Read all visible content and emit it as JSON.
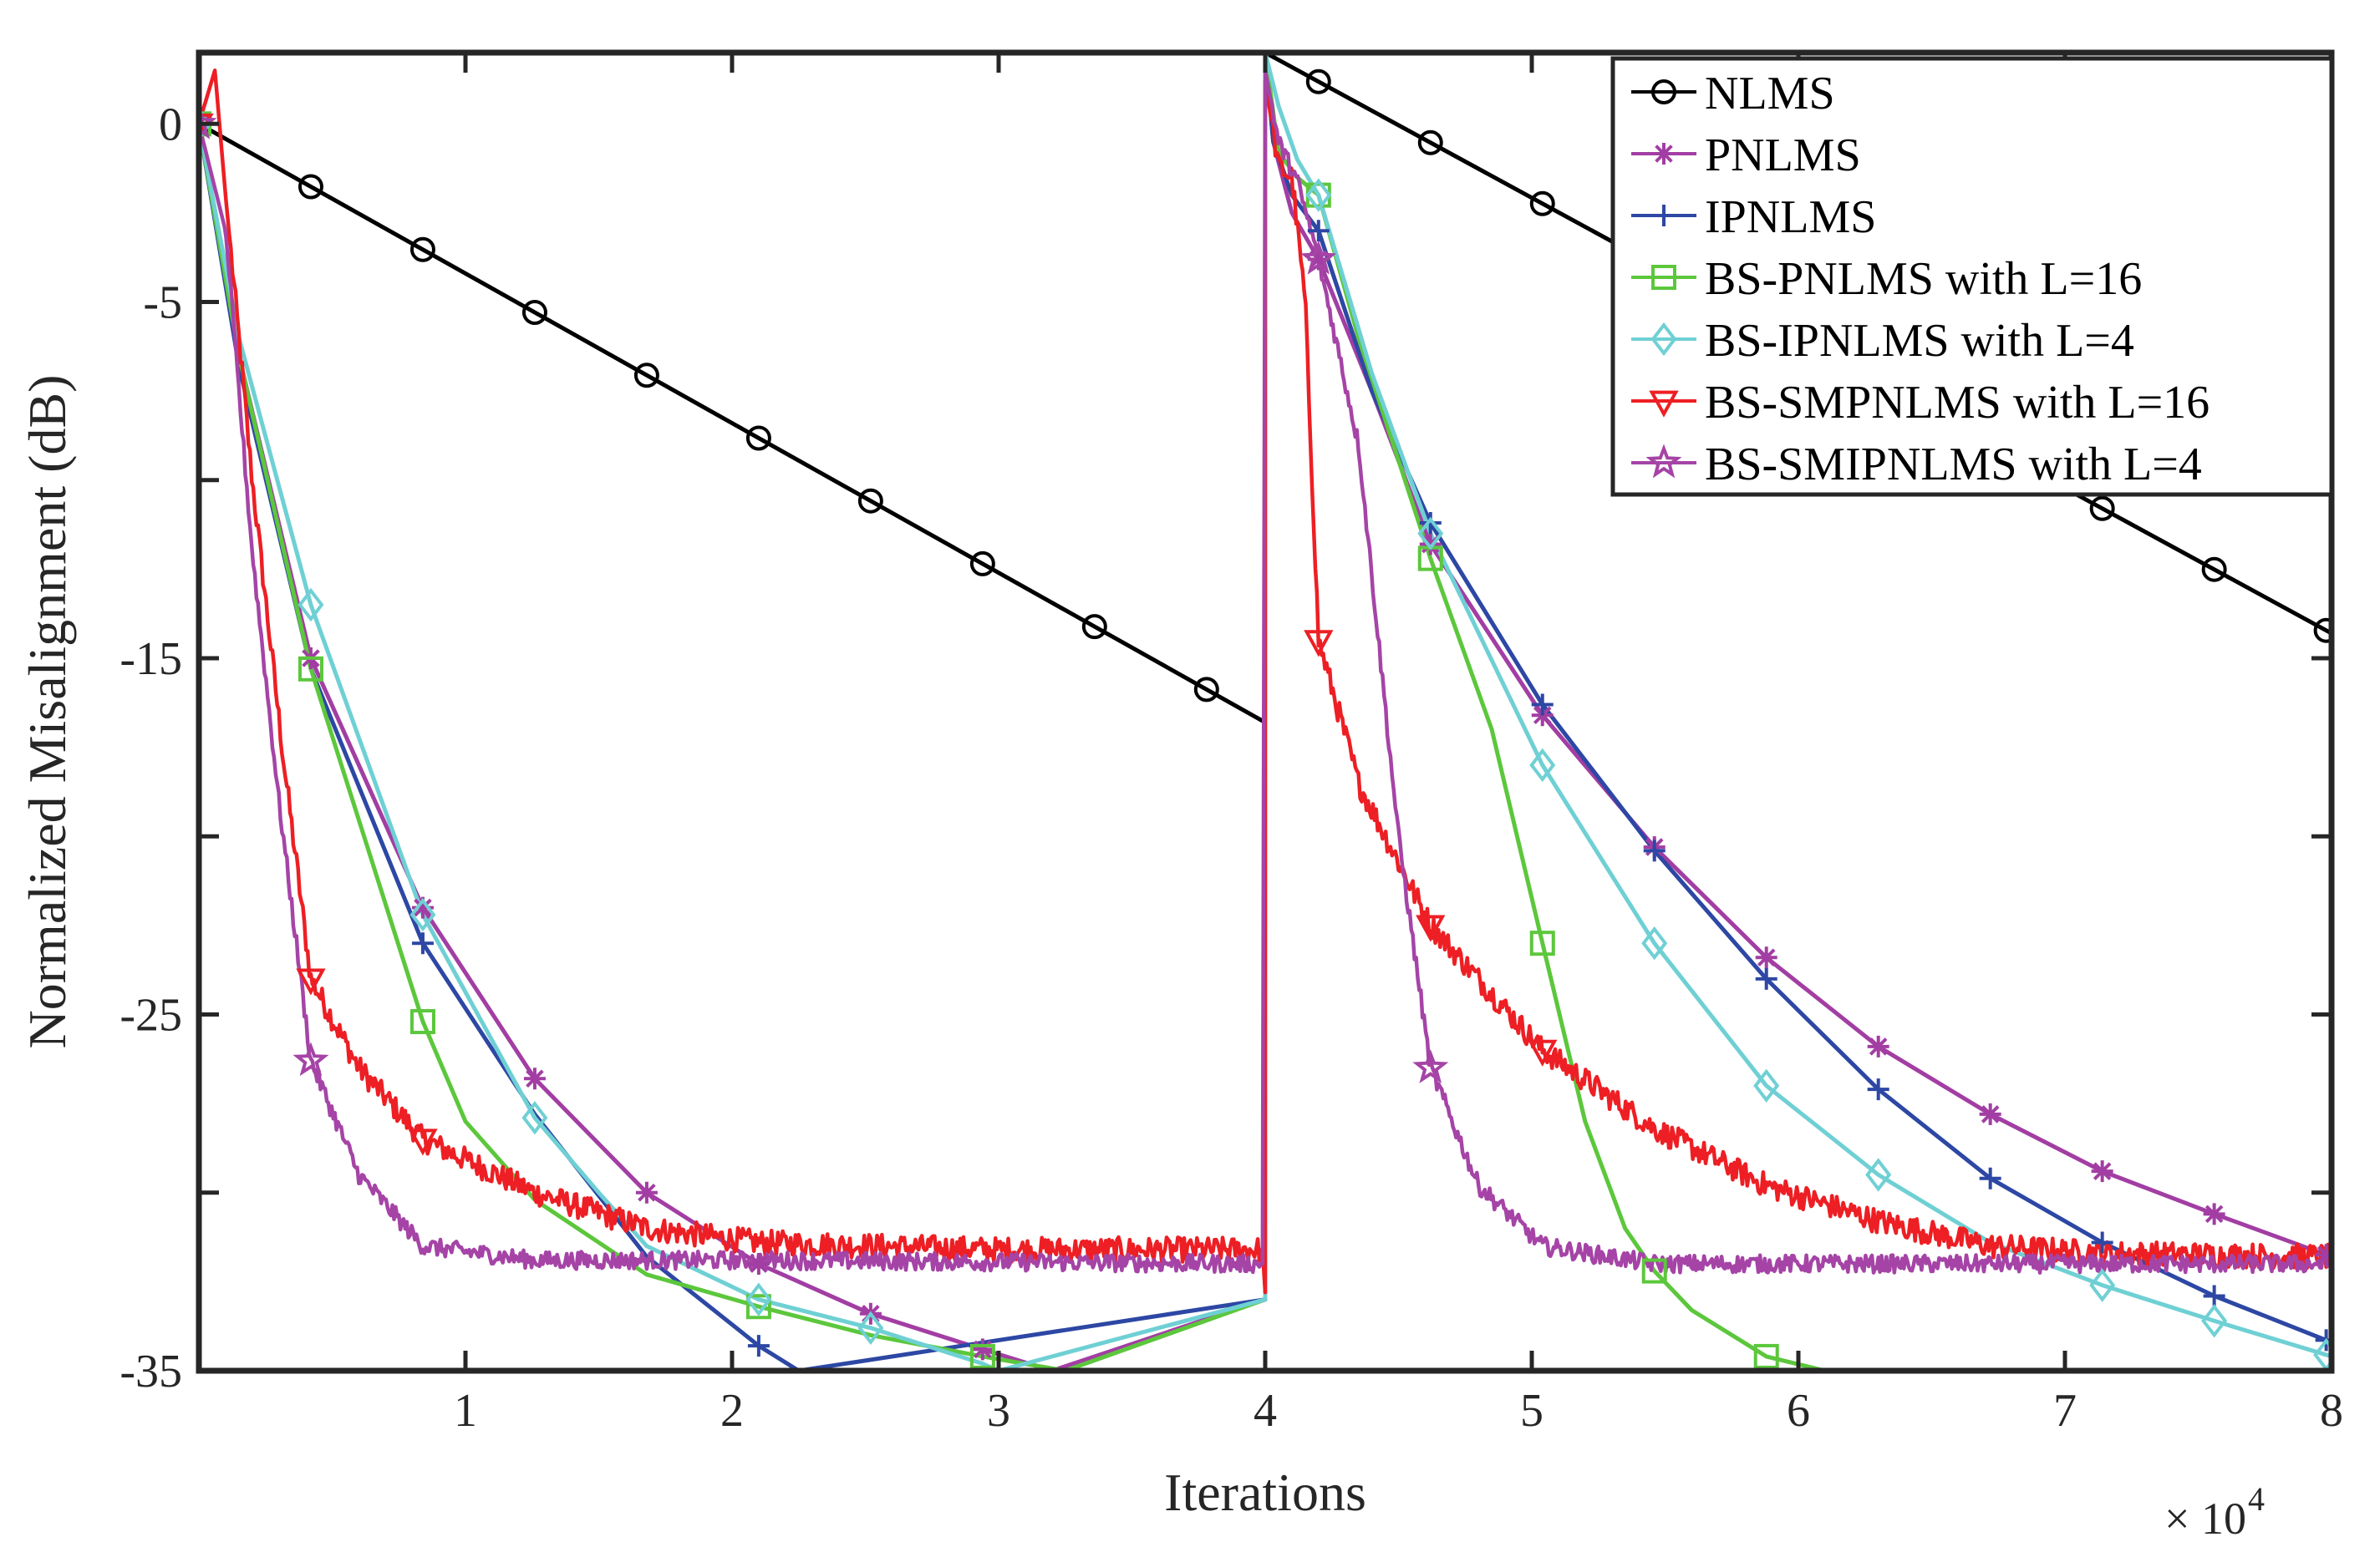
{
  "chart_data": {
    "type": "line",
    "title": "",
    "xlabel": "Iterations",
    "ylabel": "Normalized Misalignment (dB)",
    "x_exponent_label": "× 10",
    "x_exponent_power": "4",
    "xlim": [
      0,
      8
    ],
    "ylim": [
      -35,
      2
    ],
    "x_ticks": [
      1,
      2,
      3,
      4,
      5,
      6,
      7,
      8
    ],
    "x_tick_labels": [
      "1",
      "2",
      "3",
      "4",
      "5",
      "6",
      "7",
      "8"
    ],
    "y_ticks": [
      0,
      -5,
      -15,
      -25,
      -35
    ],
    "y_tick_labels": [
      "0",
      "-5",
      "-15",
      "-25",
      "-35"
    ],
    "y_tick_marks": [
      0,
      -5,
      -10,
      -15,
      -20,
      -25,
      -30,
      -35
    ],
    "grid": false,
    "legend_position": "top-right",
    "series": [
      {
        "name": "NLMS",
        "color": "#000000",
        "marker": "circle",
        "points": [
          [
            0,
            0
          ],
          [
            4,
            -16.8
          ],
          [
            4.0001,
            2
          ],
          [
            8,
            -14.3
          ]
        ],
        "marker_x": [
          0,
          0.42,
          0.84,
          1.26,
          1.68,
          2.1,
          2.52,
          2.94,
          3.36,
          3.78,
          4.2,
          4.62,
          5.04,
          5.46,
          5.88,
          6.3,
          6.72,
          7.14,
          7.56,
          7.98
        ]
      },
      {
        "name": "PNLMS",
        "color": "#a23ea3",
        "marker": "asterisk",
        "points": [
          [
            0,
            0
          ],
          [
            0.15,
            -6.5
          ],
          [
            0.42,
            -15.0
          ],
          [
            0.84,
            -22.0
          ],
          [
            1.26,
            -26.8
          ],
          [
            1.68,
            -30.0
          ],
          [
            2.1,
            -32.0
          ],
          [
            2.52,
            -33.4
          ],
          [
            2.94,
            -34.4
          ],
          [
            3.2,
            -35
          ],
          [
            4,
            -33
          ],
          [
            4.0001,
            2
          ],
          [
            4.03,
            -0.5
          ],
          [
            4.1,
            -2.5
          ],
          [
            4.2,
            -3.8
          ],
          [
            4.4,
            -7.5
          ],
          [
            4.62,
            -11.8
          ],
          [
            5.04,
            -16.6
          ],
          [
            5.46,
            -20.3
          ],
          [
            5.88,
            -23.4
          ],
          [
            6.3,
            -25.9
          ],
          [
            6.72,
            -27.8
          ],
          [
            7.14,
            -29.4
          ],
          [
            7.56,
            -30.6
          ],
          [
            8,
            -31.8
          ]
        ],
        "marker_x": [
          0,
          0.42,
          0.84,
          1.26,
          1.68,
          2.1,
          2.52,
          2.94,
          4.2,
          4.62,
          5.04,
          5.46,
          5.88,
          6.3,
          6.72,
          7.14,
          7.56,
          7.98
        ]
      },
      {
        "name": "IPNLMS",
        "color": "#2d47a4",
        "marker": "plus",
        "points": [
          [
            0,
            0
          ],
          [
            0.15,
            -6.8
          ],
          [
            0.42,
            -15.3
          ],
          [
            0.84,
            -23.0
          ],
          [
            1.26,
            -27.8
          ],
          [
            1.68,
            -31.8
          ],
          [
            2.1,
            -34.3
          ],
          [
            2.25,
            -35
          ],
          [
            4,
            -33
          ],
          [
            4.0001,
            2
          ],
          [
            4.03,
            -0.5
          ],
          [
            4.1,
            -2.0
          ],
          [
            4.2,
            -3.0
          ],
          [
            4.4,
            -7.5
          ],
          [
            4.62,
            -11.2
          ],
          [
            5.04,
            -16.3
          ],
          [
            5.46,
            -20.4
          ],
          [
            5.88,
            -24.0
          ],
          [
            6.3,
            -27.1
          ],
          [
            6.72,
            -29.6
          ],
          [
            7.14,
            -31.4
          ],
          [
            7.56,
            -32.9
          ],
          [
            8,
            -34.2
          ]
        ],
        "marker_x": [
          0,
          0.84,
          2.1,
          4.2,
          4.62,
          5.04,
          5.46,
          5.88,
          6.3,
          6.72,
          7.14,
          7.56,
          7.98
        ]
      },
      {
        "name": "BS-PNLMS with L=16",
        "color": "#5cc73c",
        "marker": "square",
        "points": [
          [
            0,
            0
          ],
          [
            0.15,
            -6.5
          ],
          [
            0.42,
            -15.3
          ],
          [
            0.84,
            -25.2
          ],
          [
            1.0,
            -28.0
          ],
          [
            1.26,
            -30.2
          ],
          [
            1.68,
            -32.3
          ],
          [
            2.1,
            -33.2
          ],
          [
            2.52,
            -34.0
          ],
          [
            2.94,
            -34.6
          ],
          [
            3.25,
            -35
          ],
          [
            4,
            -33
          ],
          [
            4.0001,
            2
          ],
          [
            4.05,
            -0.8
          ],
          [
            4.12,
            -1.5
          ],
          [
            4.2,
            -2.0
          ],
          [
            4.35,
            -6.0
          ],
          [
            4.62,
            -12.2
          ],
          [
            4.85,
            -17.0
          ],
          [
            5.04,
            -23.0
          ],
          [
            5.2,
            -28.0
          ],
          [
            5.35,
            -31.0
          ],
          [
            5.46,
            -32.2
          ],
          [
            5.6,
            -33.3
          ],
          [
            5.88,
            -34.6
          ],
          [
            6.1,
            -35
          ]
        ],
        "marker_x": [
          0,
          0.42,
          0.84,
          2.1,
          2.94,
          4.2,
          4.62,
          5.04,
          5.46,
          5.88
        ]
      },
      {
        "name": "BS-IPNLMS with L=4",
        "color": "#6fd0d4",
        "marker": "diamond",
        "points": [
          [
            0,
            0
          ],
          [
            0.15,
            -6.0
          ],
          [
            0.42,
            -13.5
          ],
          [
            0.84,
            -22.2
          ],
          [
            1.26,
            -27.9
          ],
          [
            1.5,
            -30.0
          ],
          [
            1.68,
            -31.5
          ],
          [
            2.1,
            -33.0
          ],
          [
            2.52,
            -33.8
          ],
          [
            2.94,
            -34.8
          ],
          [
            3.0,
            -35
          ],
          [
            4,
            -33
          ],
          [
            4.0001,
            2
          ],
          [
            4.05,
            0.5
          ],
          [
            4.12,
            -1.0
          ],
          [
            4.2,
            -2.0
          ],
          [
            4.4,
            -7.0
          ],
          [
            4.62,
            -11.5
          ],
          [
            5.04,
            -18.0
          ],
          [
            5.46,
            -23.0
          ],
          [
            5.88,
            -27.0
          ],
          [
            6.3,
            -29.5
          ],
          [
            6.72,
            -31.4
          ],
          [
            7.14,
            -32.6
          ],
          [
            7.56,
            -33.6
          ],
          [
            8,
            -34.6
          ]
        ],
        "marker_x": [
          0,
          0.42,
          0.84,
          1.26,
          2.1,
          2.52,
          4.2,
          4.62,
          5.04,
          5.46,
          5.88,
          6.3,
          7.14,
          7.56,
          7.98
        ]
      },
      {
        "name": "BS-SMPNLMS with L=16",
        "color": "#ed1f24",
        "marker": "triangle-down",
        "noise": 0.35,
        "points": [
          [
            0,
            0
          ],
          [
            0.06,
            1.5
          ],
          [
            0.1,
            -2.0
          ],
          [
            0.2,
            -10.0
          ],
          [
            0.32,
            -18.0
          ],
          [
            0.42,
            -24.0
          ],
          [
            0.6,
            -26.5
          ],
          [
            0.84,
            -28.5
          ],
          [
            1.26,
            -30.0
          ],
          [
            1.68,
            -31.0
          ],
          [
            2.1,
            -31.4
          ],
          [
            3.0,
            -31.6
          ],
          [
            3.99,
            -31.6
          ],
          [
            4.0,
            -32.8
          ],
          [
            4.0001,
            1.2
          ],
          [
            4.05,
            -1.2
          ],
          [
            4.1,
            -1.5
          ],
          [
            4.15,
            -5.0
          ],
          [
            4.2,
            -14.5
          ],
          [
            4.35,
            -18.5
          ],
          [
            4.62,
            -22.5
          ],
          [
            5.04,
            -26.0
          ],
          [
            5.46,
            -28.2
          ],
          [
            5.88,
            -29.8
          ],
          [
            6.3,
            -30.8
          ],
          [
            6.72,
            -31.5
          ],
          [
            7.14,
            -31.7
          ],
          [
            8,
            -31.8
          ]
        ],
        "marker_x": [
          0,
          0.42,
          0.84,
          4.2,
          4.62,
          5.04
        ]
      },
      {
        "name": "BS-SMIPNLMS with L=4",
        "color": "#a544a6",
        "marker": "star",
        "noise": 0.25,
        "points": [
          [
            0,
            0
          ],
          [
            0.1,
            -3.0
          ],
          [
            0.2,
            -12.0
          ],
          [
            0.3,
            -19.0
          ],
          [
            0.42,
            -26.3
          ],
          [
            0.6,
            -29.5
          ],
          [
            0.84,
            -31.5
          ],
          [
            1.26,
            -31.9
          ],
          [
            2.1,
            -31.9
          ],
          [
            3.99,
            -32.0
          ],
          [
            4.0001,
            1.5
          ],
          [
            4.05,
            -0.5
          ],
          [
            4.12,
            -1.6
          ],
          [
            4.2,
            -3.8
          ],
          [
            4.35,
            -9.0
          ],
          [
            4.5,
            -20.0
          ],
          [
            4.62,
            -26.5
          ],
          [
            4.8,
            -29.8
          ],
          [
            5.04,
            -31.5
          ],
          [
            5.46,
            -32.0
          ],
          [
            8,
            -32.0
          ]
        ],
        "marker_x": [
          0,
          0.42,
          4.2,
          4.62
        ]
      }
    ]
  }
}
